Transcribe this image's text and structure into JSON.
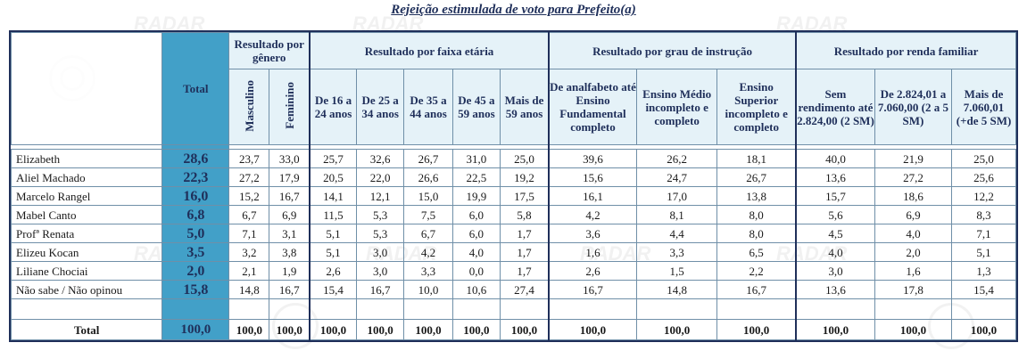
{
  "title": "Rejeição estimulada de voto para Prefeito(a)",
  "watermark": "RADAR",
  "headers": {
    "total": "Total",
    "genero": "Resultado por gênero",
    "faixa": "Resultado por faixa etária",
    "grau": "Resultado por grau de instrução",
    "renda": "Resultado por renda familiar",
    "sub": [
      "Masculino",
      "Feminino",
      "De 16 a 24 anos",
      "De 25 a 34 anos",
      "De 35 a 44 anos",
      "De 45 a 59 anos",
      "Mais de 59 anos",
      "De analfabeto até Ensino Fundamental completo",
      "Ensino Médio incompleto e completo",
      "Ensino Superior incompleto e completo",
      "Sem rendimento até 2.824,00 (2 SM)",
      "De 2.824,01 a 7.060,00 (2 a 5 SM)",
      "Mais de 7.060,01 (+de 5 SM)"
    ]
  },
  "rows": [
    {
      "name": "Elizabeth",
      "total": "28,6",
      "values": [
        "23,7",
        "33,0",
        "25,7",
        "32,6",
        "26,7",
        "31,0",
        "25,0",
        "39,6",
        "26,2",
        "18,1",
        "40,0",
        "21,9",
        "25,0"
      ]
    },
    {
      "name": "Aliel Machado",
      "total": "22,3",
      "values": [
        "27,2",
        "17,9",
        "20,5",
        "22,0",
        "26,6",
        "22,5",
        "19,2",
        "15,6",
        "24,7",
        "26,7",
        "13,6",
        "27,2",
        "25,6"
      ]
    },
    {
      "name": "Marcelo Rangel",
      "total": "16,0",
      "values": [
        "15,2",
        "16,7",
        "14,1",
        "12,1",
        "15,0",
        "19,9",
        "17,5",
        "16,1",
        "17,0",
        "13,8",
        "15,7",
        "18,6",
        "12,2"
      ]
    },
    {
      "name": "Mabel Canto",
      "total": "6,8",
      "values": [
        "6,7",
        "6,9",
        "11,5",
        "5,3",
        "7,5",
        "6,0",
        "5,8",
        "4,2",
        "8,1",
        "8,0",
        "5,6",
        "6,9",
        "8,3"
      ]
    },
    {
      "name": "Profª Renata",
      "total": "5,0",
      "values": [
        "7,1",
        "3,1",
        "5,1",
        "5,3",
        "6,7",
        "6,0",
        "1,7",
        "3,6",
        "4,4",
        "8,0",
        "4,5",
        "4,0",
        "7,1"
      ]
    },
    {
      "name": "Elizeu Kocan",
      "total": "3,5",
      "values": [
        "3,2",
        "3,8",
        "5,1",
        "3,0",
        "4,2",
        "4,0",
        "1,7",
        "1,6",
        "3,3",
        "6,5",
        "4,0",
        "2,0",
        "5,1"
      ]
    },
    {
      "name": "Liliane Chociai",
      "total": "2,0",
      "values": [
        "2,1",
        "1,9",
        "2,6",
        "3,0",
        "3,3",
        "0,0",
        "1,7",
        "2,6",
        "1,5",
        "2,2",
        "3,0",
        "1,6",
        "1,3"
      ]
    },
    {
      "name": "Não sabe / Não opinou",
      "total": "15,8",
      "values": [
        "14,8",
        "16,7",
        "15,4",
        "16,7",
        "10,0",
        "10,6",
        "27,4",
        "16,7",
        "14,8",
        "16,7",
        "13,6",
        "17,8",
        "15,4"
      ]
    }
  ],
  "total_row": {
    "name": "Total",
    "total": "100,0",
    "values": [
      "100,0",
      "100,0",
      "100,0",
      "100,0",
      "100,0",
      "100,0",
      "100,0",
      "100,0",
      "100,0",
      "100,0",
      "100,0",
      "100,0",
      "100,0"
    ]
  }
}
